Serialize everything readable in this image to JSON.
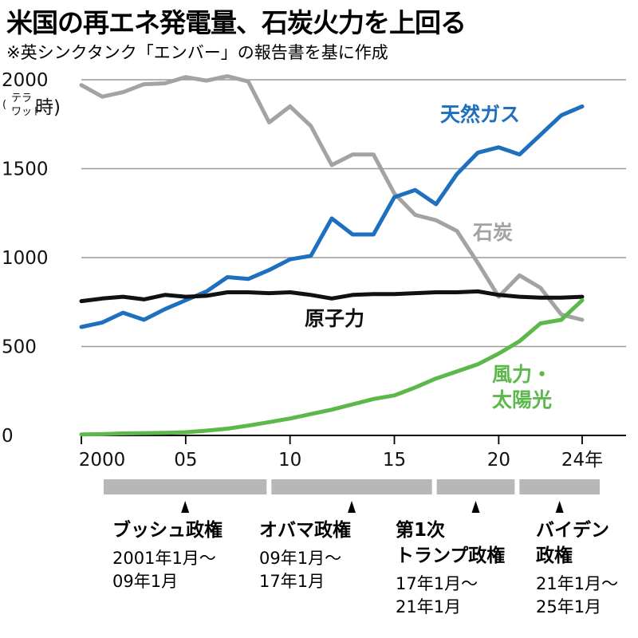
{
  "title": "米国の再エネ発電量、石炭火力を上回る",
  "subtitle": "※英シンクタンク「エンバー」の報告書を基に作成",
  "chart_data": {
    "type": "line",
    "x": [
      2000,
      2001,
      2002,
      2003,
      2004,
      2005,
      2006,
      2007,
      2008,
      2009,
      2010,
      2011,
      2012,
      2013,
      2014,
      2015,
      2016,
      2017,
      2018,
      2019,
      2020,
      2021,
      2022,
      2023,
      2024
    ],
    "x_ticks": [
      {
        "value": 2000,
        "label": "2000"
      },
      {
        "value": 2005,
        "label": "05"
      },
      {
        "value": 2010,
        "label": "10"
      },
      {
        "value": 2015,
        "label": "15"
      },
      {
        "value": 2020,
        "label": "20"
      },
      {
        "value": 2024,
        "label": "24年"
      }
    ],
    "y_ticks": [
      "0",
      "500",
      "1000",
      "1500",
      "2000"
    ],
    "ylim": [
      0,
      2000
    ],
    "xlim": [
      2000,
      2024
    ],
    "yunit": {
      "open": "(",
      "top": "テラ",
      "bottom": "ワット",
      "main": "時)"
    },
    "grid": "horizontal",
    "series": [
      {
        "name": "天然ガス",
        "color": "#1f6fbf",
        "values": [
          610,
          635,
          690,
          650,
          710,
          760,
          810,
          890,
          880,
          930,
          990,
          1010,
          1220,
          1130,
          1130,
          1340,
          1380,
          1300,
          1470,
          1590,
          1620,
          1580,
          1690,
          1800,
          1850
        ]
      },
      {
        "name": "石炭",
        "color": "#a3a3a3",
        "values": [
          1970,
          1905,
          1930,
          1975,
          1980,
          2015,
          1995,
          2020,
          1990,
          1760,
          1850,
          1740,
          1520,
          1580,
          1580,
          1360,
          1240,
          1210,
          1150,
          970,
          780,
          900,
          830,
          680,
          650
        ]
      },
      {
        "name": "原子力",
        "color": "#111111",
        "values": [
          755,
          770,
          780,
          765,
          790,
          780,
          785,
          805,
          805,
          800,
          805,
          790,
          770,
          790,
          795,
          795,
          800,
          805,
          805,
          810,
          790,
          780,
          775,
          775,
          780
        ]
      },
      {
        "name": "風力・太陽光",
        "label_lines": [
          "風力・",
          "太陽光"
        ],
        "color": "#5cb84a",
        "values": [
          6,
          7,
          11,
          13,
          15,
          18,
          27,
          38,
          55,
          75,
          95,
          120,
          145,
          175,
          205,
          225,
          270,
          320,
          360,
          400,
          460,
          530,
          630,
          650,
          760
        ]
      }
    ]
  },
  "eras": [
    {
      "name_lines": [
        "ブッシュ政権"
      ],
      "period_lines": [
        "2001年1月〜",
        "09年1月"
      ],
      "start": 2001,
      "end": 2009
    },
    {
      "name_lines": [
        "オバマ政権"
      ],
      "period_lines": [
        "09年1月〜",
        "17年1月"
      ],
      "start": 2009,
      "end": 2017
    },
    {
      "name_lines": [
        "第1次",
        "トランプ政権"
      ],
      "period_lines": [
        "17年1月〜",
        "21年1月"
      ],
      "start": 2017,
      "end": 2021
    },
    {
      "name_lines": [
        "バイデン",
        "政権"
      ],
      "period_lines": [
        "21年1月〜",
        "25年1月"
      ],
      "start": 2021,
      "end": 2025
    }
  ],
  "colors": {
    "era_bar": "#b7b7b7",
    "grid": "#9a9a9a",
    "axis": "#000000"
  }
}
